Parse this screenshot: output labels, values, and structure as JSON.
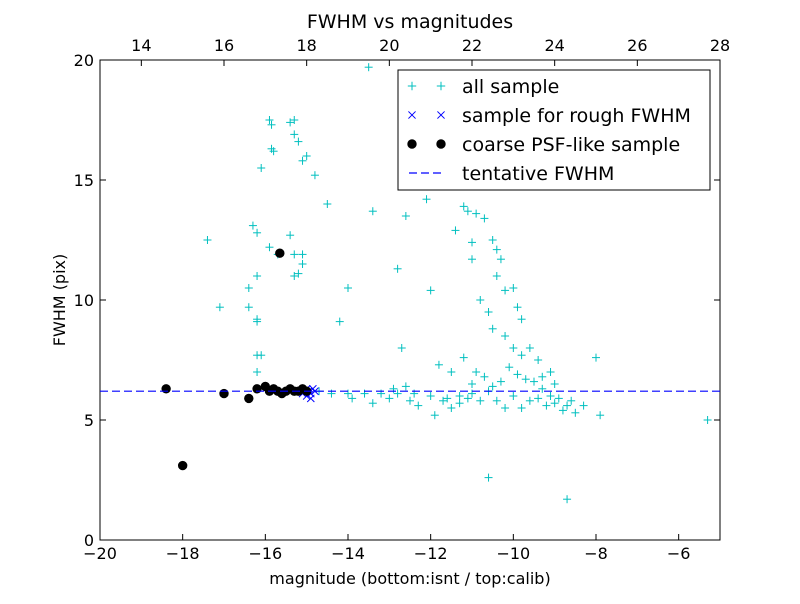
{
  "chart_data": {
    "type": "scatter",
    "title": "FWHM vs magnitudes",
    "xlabel": "magnitude (bottom:isnt / top:calib)",
    "ylabel": "FWHM (pix)",
    "xlim": [
      -20,
      -5
    ],
    "ylim": [
      0,
      20
    ],
    "x_ticks": [
      -20,
      -18,
      -16,
      -14,
      -12,
      -10,
      -8,
      -6
    ],
    "x_tick_labels": [
      "−20",
      "−18",
      "−16",
      "−14",
      "−12",
      "−10",
      "−8",
      "−6"
    ],
    "y_ticks": [
      0,
      5,
      10,
      15,
      20
    ],
    "y_tick_labels": [
      "0",
      "5",
      "10",
      "15",
      "20"
    ],
    "top_axis": {
      "offset": 33,
      "ticks": [
        14,
        16,
        18,
        20,
        22,
        24,
        26,
        28
      ],
      "tick_labels": [
        "14",
        "16",
        "18",
        "20",
        "22",
        "24",
        "26",
        "28"
      ]
    },
    "grid": false,
    "legend_position": "top-right",
    "tentative_fwhm": 6.2,
    "series": [
      {
        "name": "all sample",
        "marker": "plus",
        "color": "#00bfbf",
        "points": [
          [
            -17.4,
            12.5
          ],
          [
            -17.1,
            9.7
          ],
          [
            -16.4,
            10.5
          ],
          [
            -16.4,
            9.7
          ],
          [
            -16.3,
            13.1
          ],
          [
            -16.2,
            12.8
          ],
          [
            -16.1,
            15.5
          ],
          [
            -16.2,
            11.0
          ],
          [
            -16.2,
            9.2
          ],
          [
            -16.2,
            9.1
          ],
          [
            -16.2,
            7.7
          ],
          [
            -16.1,
            7.7
          ],
          [
            -16.2,
            7.0
          ],
          [
            -15.9,
            17.5
          ],
          [
            -15.85,
            17.3
          ],
          [
            -15.85,
            16.3
          ],
          [
            -15.8,
            16.2
          ],
          [
            -15.9,
            12.2
          ],
          [
            -15.7,
            11.9
          ],
          [
            -15.4,
            17.4
          ],
          [
            -15.3,
            17.5
          ],
          [
            -15.3,
            16.9
          ],
          [
            -15.2,
            16.6
          ],
          [
            -15.1,
            15.8
          ],
          [
            -15.0,
            16.0
          ],
          [
            -14.8,
            15.2
          ],
          [
            -15.4,
            12.7
          ],
          [
            -15.3,
            11.9
          ],
          [
            -15.1,
            11.9
          ],
          [
            -15.1,
            11.5
          ],
          [
            -15.2,
            11.1
          ],
          [
            -15.3,
            11.0
          ],
          [
            -14.5,
            14.0
          ],
          [
            -14.0,
            10.5
          ],
          [
            -14.2,
            9.1
          ],
          [
            -13.5,
            19.7
          ],
          [
            -13.4,
            13.7
          ],
          [
            -12.8,
            11.3
          ],
          [
            -12.7,
            8.0
          ],
          [
            -12.6,
            13.5
          ],
          [
            -12.1,
            14.2
          ],
          [
            -12.0,
            10.4
          ],
          [
            -11.2,
            13.9
          ],
          [
            -11.4,
            12.9
          ],
          [
            -11.1,
            13.7
          ],
          [
            -11.0,
            12.4
          ],
          [
            -11.0,
            11.7
          ],
          [
            -10.9,
            13.6
          ],
          [
            -10.7,
            13.4
          ],
          [
            -10.5,
            12.5
          ],
          [
            -10.4,
            12.1
          ],
          [
            -10.3,
            11.7
          ],
          [
            -10.4,
            11.0
          ],
          [
            -10.2,
            10.4
          ],
          [
            -10.0,
            10.5
          ],
          [
            -9.9,
            9.7
          ],
          [
            -9.8,
            9.2
          ],
          [
            -10.8,
            10.0
          ],
          [
            -10.6,
            9.5
          ],
          [
            -10.5,
            8.8
          ],
          [
            -10.2,
            8.5
          ],
          [
            -10.0,
            8.0
          ],
          [
            -9.8,
            7.7
          ],
          [
            -9.6,
            8.0
          ],
          [
            -9.4,
            7.5
          ],
          [
            -9.3,
            6.8
          ],
          [
            -9.1,
            7.0
          ],
          [
            -9.0,
            6.5
          ],
          [
            -10.6,
            2.6
          ],
          [
            -8.7,
            1.7
          ],
          [
            -8.0,
            7.6
          ],
          [
            -7.9,
            5.2
          ],
          [
            -5.3,
            5.0
          ],
          [
            -11.8,
            7.3
          ],
          [
            -11.5,
            7.0
          ],
          [
            -11.2,
            7.6
          ],
          [
            -11.0,
            6.5
          ],
          [
            -10.9,
            7.0
          ],
          [
            -10.7,
            6.8
          ],
          [
            -10.5,
            6.4
          ],
          [
            -10.3,
            6.6
          ],
          [
            -10.1,
            7.2
          ],
          [
            -9.9,
            6.9
          ],
          [
            -9.7,
            6.7
          ],
          [
            -9.5,
            6.6
          ],
          [
            -9.3,
            6.3
          ],
          [
            -9.1,
            6.0
          ],
          [
            -8.9,
            5.9
          ],
          [
            -8.7,
            5.6
          ],
          [
            -8.5,
            5.3
          ],
          [
            -8.3,
            5.6
          ],
          [
            -8.8,
            5.4
          ],
          [
            -8.6,
            5.8
          ],
          [
            -10.2,
            5.5
          ],
          [
            -9.8,
            5.5
          ],
          [
            -9.6,
            5.8
          ],
          [
            -9.4,
            5.9
          ],
          [
            -9.2,
            5.6
          ],
          [
            -9.0,
            5.7
          ],
          [
            -10.0,
            6.0
          ],
          [
            -10.4,
            5.8
          ],
          [
            -10.6,
            6.2
          ],
          [
            -11.0,
            6.1
          ],
          [
            -11.3,
            6.0
          ],
          [
            -11.6,
            5.9
          ],
          [
            -12.0,
            6.0
          ],
          [
            -12.4,
            6.1
          ],
          [
            -12.8,
            6.1
          ],
          [
            -13.2,
            6.1
          ],
          [
            -13.6,
            6.1
          ],
          [
            -14.0,
            6.1
          ],
          [
            -14.4,
            6.1
          ],
          [
            -14.7,
            6.2
          ],
          [
            -12.3,
            5.6
          ],
          [
            -13.0,
            5.9
          ],
          [
            -13.9,
            5.9
          ],
          [
            -11.9,
            5.2
          ],
          [
            -11.7,
            5.8
          ],
          [
            -11.5,
            5.5
          ],
          [
            -11.3,
            5.7
          ],
          [
            -11.1,
            5.9
          ],
          [
            -10.8,
            5.8
          ],
          [
            -12.5,
            5.8
          ],
          [
            -13.4,
            5.7
          ],
          [
            -12.9,
            6.3
          ],
          [
            -12.6,
            6.4
          ]
        ]
      },
      {
        "name": "sample for rough FWHM",
        "marker": "x",
        "color": "#0000ff",
        "points": [
          [
            -15.2,
            6.2
          ],
          [
            -15.1,
            6.1
          ],
          [
            -15.0,
            6.3
          ],
          [
            -14.95,
            6.2
          ],
          [
            -14.9,
            6.1
          ],
          [
            -14.85,
            6.3
          ],
          [
            -14.8,
            6.2
          ],
          [
            -14.9,
            5.9
          ],
          [
            -15.0,
            6.0
          ]
        ]
      },
      {
        "name": "coarse PSF-like sample",
        "marker": "dot",
        "color": "#000000",
        "points": [
          [
            -18.4,
            6.3
          ],
          [
            -18.0,
            3.1
          ],
          [
            -17.0,
            6.1
          ],
          [
            -16.4,
            5.9
          ],
          [
            -16.2,
            6.3
          ],
          [
            -16.0,
            6.4
          ],
          [
            -15.9,
            6.2
          ],
          [
            -15.8,
            6.3
          ],
          [
            -15.7,
            6.2
          ],
          [
            -15.6,
            6.1
          ],
          [
            -15.5,
            6.2
          ],
          [
            -15.4,
            6.3
          ],
          [
            -15.3,
            6.2
          ],
          [
            -15.2,
            6.2
          ],
          [
            -15.1,
            6.3
          ],
          [
            -15.0,
            6.2
          ],
          [
            -15.65,
            11.95
          ]
        ]
      },
      {
        "name": "tentative FWHM",
        "marker": "dashed-line",
        "color": "#0000ff",
        "points": []
      }
    ]
  }
}
